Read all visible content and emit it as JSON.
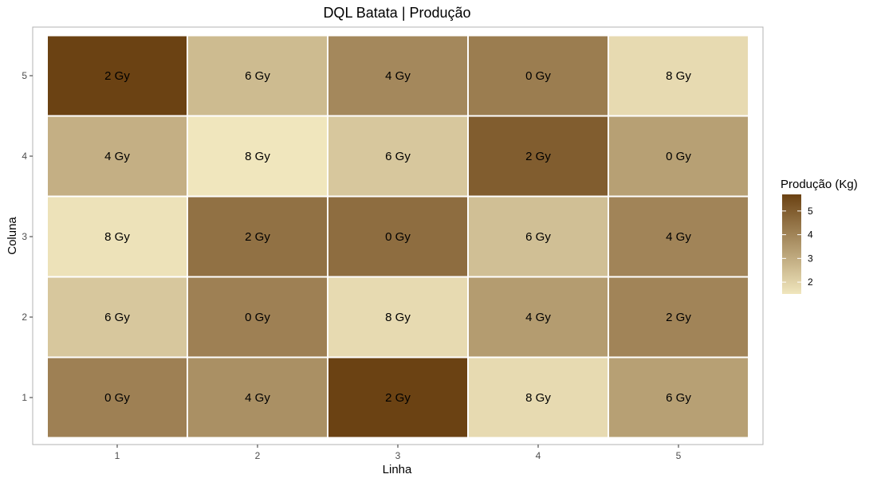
{
  "chart_data": {
    "type": "heatmap",
    "title": "DQL Batata | Produção",
    "xlabel": "Linha",
    "ylabel": "Coluna",
    "x_categories": [
      "1",
      "2",
      "3",
      "4",
      "5"
    ],
    "y_categories": [
      "1",
      "2",
      "3",
      "4",
      "5"
    ],
    "cells": [
      {
        "x": 1,
        "y": 5,
        "label": "2 Gy",
        "value": 5.7
      },
      {
        "x": 2,
        "y": 5,
        "label": "6 Gy",
        "value": 2.6
      },
      {
        "x": 3,
        "y": 5,
        "label": "4 Gy",
        "value": 3.9
      },
      {
        "x": 4,
        "y": 5,
        "label": "0 Gy",
        "value": 4.2
      },
      {
        "x": 5,
        "y": 5,
        "label": "8 Gy",
        "value": 1.8
      },
      {
        "x": 1,
        "y": 4,
        "label": "4 Gy",
        "value": 2.9
      },
      {
        "x": 2,
        "y": 4,
        "label": "8 Gy",
        "value": 1.5
      },
      {
        "x": 3,
        "y": 4,
        "label": "6 Gy",
        "value": 2.3
      },
      {
        "x": 4,
        "y": 4,
        "label": "2 Gy",
        "value": 5.0
      },
      {
        "x": 5,
        "y": 4,
        "label": "0 Gy",
        "value": 3.3
      },
      {
        "x": 1,
        "y": 3,
        "label": "8 Gy",
        "value": 1.6
      },
      {
        "x": 2,
        "y": 3,
        "label": "2 Gy",
        "value": 4.5
      },
      {
        "x": 3,
        "y": 3,
        "label": "0 Gy",
        "value": 4.6
      },
      {
        "x": 4,
        "y": 3,
        "label": "6 Gy",
        "value": 2.5
      },
      {
        "x": 5,
        "y": 3,
        "label": "4 Gy",
        "value": 4.0
      },
      {
        "x": 1,
        "y": 2,
        "label": "6 Gy",
        "value": 2.3
      },
      {
        "x": 2,
        "y": 2,
        "label": "0 Gy",
        "value": 4.1
      },
      {
        "x": 3,
        "y": 2,
        "label": "8 Gy",
        "value": 1.8
      },
      {
        "x": 4,
        "y": 2,
        "label": "4 Gy",
        "value": 3.4
      },
      {
        "x": 5,
        "y": 2,
        "label": "2 Gy",
        "value": 4.0
      },
      {
        "x": 1,
        "y": 1,
        "label": "0 Gy",
        "value": 4.1
      },
      {
        "x": 2,
        "y": 1,
        "label": "4 Gy",
        "value": 3.7
      },
      {
        "x": 3,
        "y": 1,
        "label": "2 Gy",
        "value": 5.7
      },
      {
        "x": 4,
        "y": 1,
        "label": "8 Gy",
        "value": 1.8
      },
      {
        "x": 5,
        "y": 1,
        "label": "6 Gy",
        "value": 3.3
      }
    ],
    "legend": {
      "title": "Produção (Kg)",
      "placement": "right",
      "ticks": [
        2,
        3,
        4,
        5
      ],
      "range": [
        1.5,
        5.7
      ],
      "low_color": "#f0e6bd",
      "high_color": "#6b4213"
    },
    "grid": false
  }
}
